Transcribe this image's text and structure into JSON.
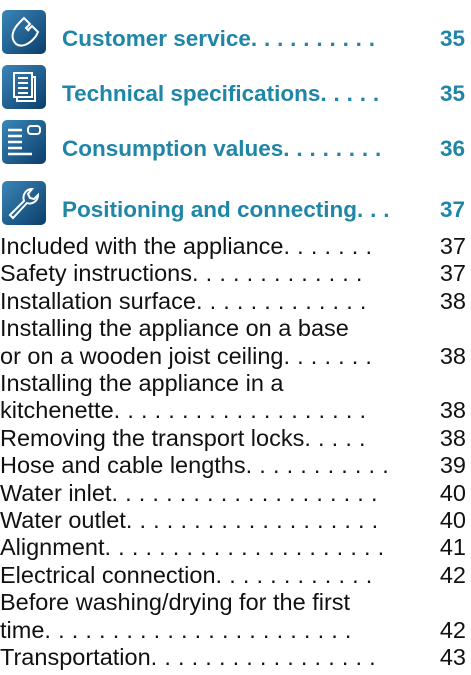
{
  "sections": [
    {
      "title": "Customer service",
      "leader": " . . . . . . . . . .",
      "page": "35"
    },
    {
      "title": "Technical specifications",
      "leader": " . . . . .",
      "page": "35"
    },
    {
      "title": "Consumption values",
      "leader": " . . . . . . . .",
      "page": "36"
    },
    {
      "title": "Positioning and connecting",
      "leader": ". . .",
      "page": "37"
    }
  ],
  "entries": [
    {
      "lines": [
        "Included with the appliance"
      ],
      "leader": ". . . . . . .",
      "page": "37"
    },
    {
      "lines": [
        "Safety instructions"
      ],
      "leader": " . . . . . . . . . . . . .",
      "page": "37"
    },
    {
      "lines": [
        "Installation surface"
      ],
      "leader": ". . . . . . . . . . . . .",
      "page": "38"
    },
    {
      "lines": [
        "Installing the appliance on a base",
        "or on a wooden joist ceiling"
      ],
      "leader": ". . . . . . .",
      "page": "38"
    },
    {
      "lines": [
        "Installing the appliance in a",
        "kitchenette"
      ],
      "leader": " . . . . . . . . . . . . . . . . . . .",
      "page": "38"
    },
    {
      "lines": [
        "Removing the transport locks"
      ],
      "leader": " . . . . .",
      "page": "38"
    },
    {
      "lines": [
        "Hose and cable lengths"
      ],
      "leader": ". . . . . . . . . . .",
      "page": "39"
    },
    {
      "lines": [
        "Water inlet"
      ],
      "leader": " . . . . . . . . . . . . . . . . . . . .",
      "page": "40"
    },
    {
      "lines": [
        "Water outlet"
      ],
      "leader": " . . . . . . . . . . . . . . . . . . .",
      "page": "40"
    },
    {
      "lines": [
        "Alignment"
      ],
      "leader": " . . . . . . . . . . . . . . . . . . . . .",
      "page": "41"
    },
    {
      "lines": [
        "Electrical connection"
      ],
      "leader": " . . . . . . . . . . . .",
      "page": "42"
    },
    {
      "lines": [
        "Before washing/drying for the first",
        "time"
      ],
      "leader": " . . . . . . . . . . . . . . . . . . . . . . .",
      "page": "42"
    },
    {
      "lines": [
        "Transportation"
      ],
      "leader": " . . . . . . . . . . . . . . . . .",
      "page": "43"
    }
  ]
}
